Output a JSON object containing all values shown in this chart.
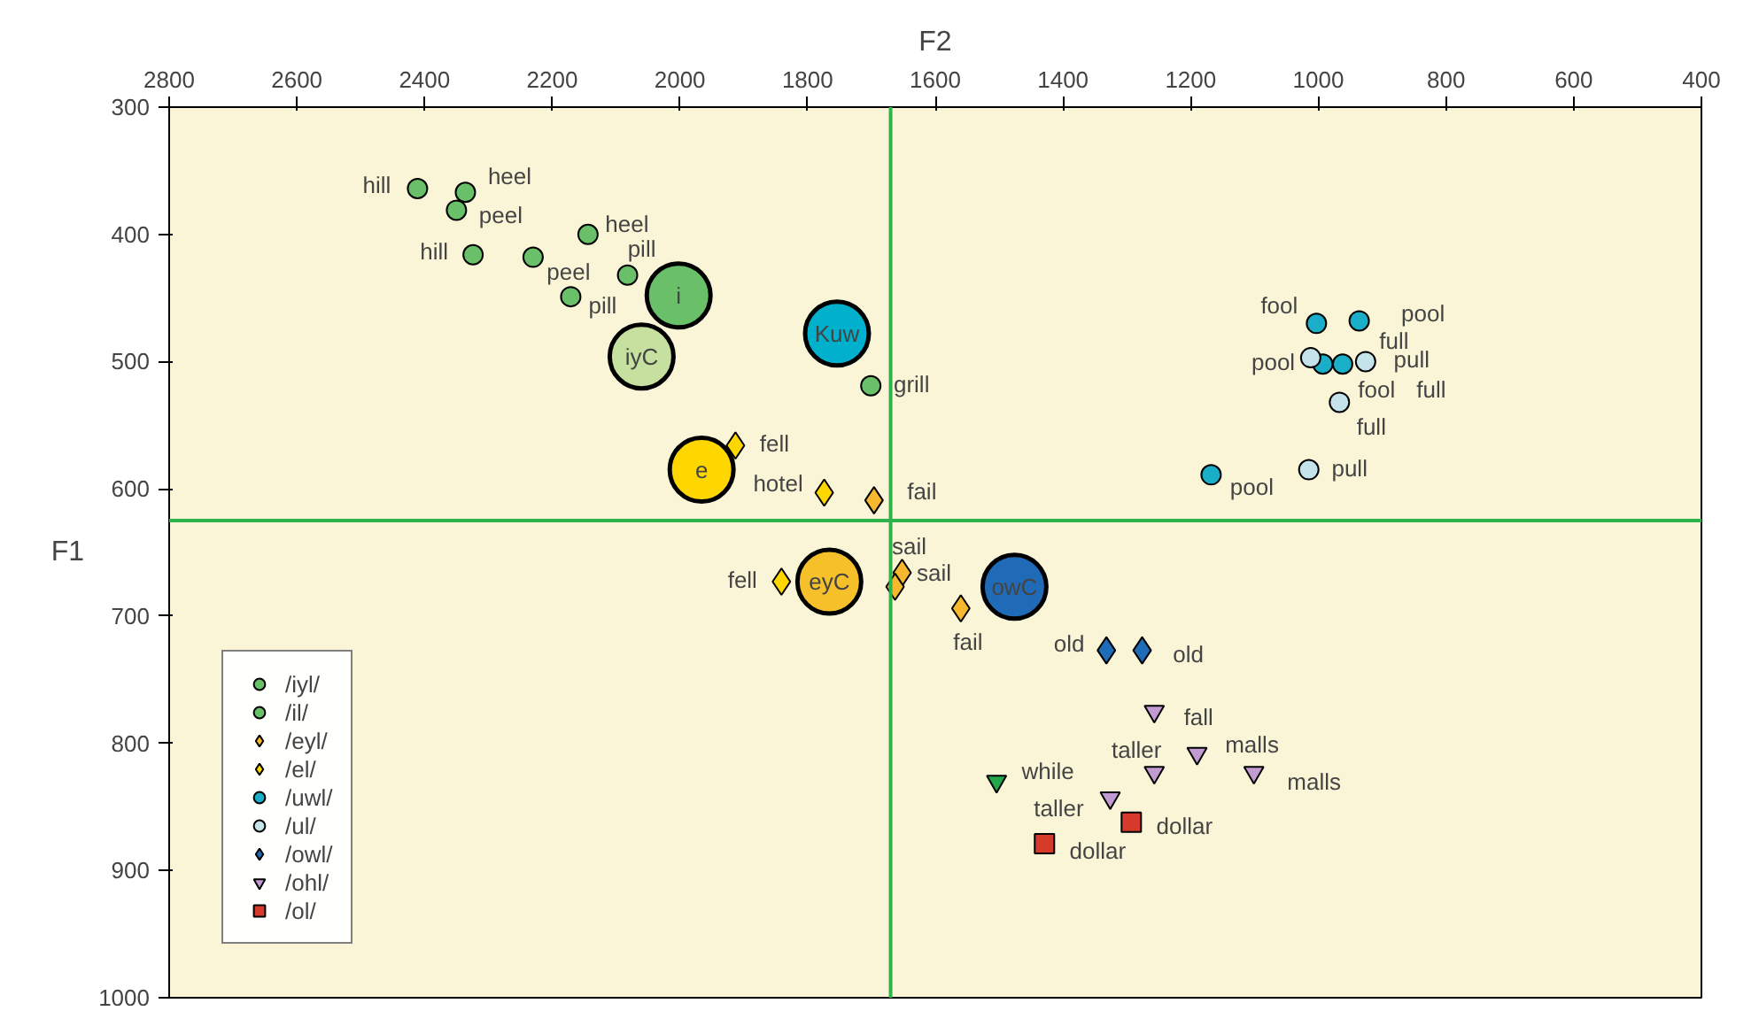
{
  "chart_data": {
    "type": "scatter",
    "xlabel": "F2",
    "ylabel": "F1",
    "xlim": [
      2800,
      400
    ],
    "ylim": [
      1000,
      300
    ],
    "xticks": [
      2800,
      2600,
      2400,
      2200,
      2000,
      1800,
      1600,
      1400,
      1200,
      1000,
      800,
      600,
      400
    ],
    "yticks": [
      300,
      400,
      500,
      600,
      700,
      800,
      900,
      1000
    ],
    "grid": false,
    "legend": "bottom left",
    "series": [
      {
        "name": "/iyl/",
        "color": "#6abf69",
        "marker": "circle",
        "x": [
          2336,
          2350,
          2144,
          2230
        ],
        "values": [
          367,
          381,
          400,
          418
        ]
      },
      {
        "name": "/il/",
        "color": "#6abf69",
        "marker": "circle",
        "x": [
          2411,
          2324,
          2082,
          2171,
          1701
        ],
        "values": [
          364,
          416,
          432,
          449,
          519
        ]
      },
      {
        "name": "/eyl/",
        "color": "#f5b82e",
        "marker": "diamond",
        "x": [
          1696,
          1652,
          1663,
          1560
        ],
        "values": [
          609,
          666,
          677,
          694
        ]
      },
      {
        "name": "/el/",
        "color": "#ffd700",
        "marker": "diamond",
        "x": [
          1913,
          1774,
          1841
        ],
        "values": [
          566,
          603,
          673
        ]
      },
      {
        "name": "/uwl/",
        "color": "#1aaec8",
        "marker": "circle",
        "x": [
          1003,
          936,
          993,
          962,
          1168
        ],
        "values": [
          470,
          468,
          502,
          502,
          589
        ]
      },
      {
        "name": "/ul/",
        "color": "#c5e3ea",
        "marker": "circle",
        "x": [
          1012,
          926,
          967,
          1015
        ],
        "values": [
          497,
          500,
          532,
          585
        ]
      },
      {
        "name": "/owl/",
        "color": "#1e6bb8",
        "marker": "diamond",
        "x": [
          1332,
          1276
        ],
        "values": [
          727,
          727
        ]
      },
      {
        "name": "/ohl/",
        "color": "#c39bd3",
        "marker": "triangle",
        "x": [
          1257,
          1257,
          1190,
          1101,
          1326
        ],
        "values": [
          775,
          823,
          808,
          823,
          843
        ]
      },
      {
        "name": "/ol/",
        "color": "#d63a2a",
        "marker": "square",
        "x": [
          1293,
          1429
        ],
        "values": [
          862,
          879
        ]
      },
      {
        "color": "#22a84a",
        "marker": "triangle",
        "x": [
          1504
        ],
        "values": [
          830
        ]
      },
      {
        "type": "bubble",
        "marker": "circle",
        "colors": [
          "#6abf69",
          "#c6e0a0",
          "#00b0cc",
          "#ffd700",
          "#f5c02a",
          "#1f6bb8"
        ],
        "x": [
          2002,
          2060,
          1754,
          1966,
          1766,
          1476
        ],
        "values": [
          448,
          496,
          478,
          585,
          673,
          677
        ],
        "sizes": [
          1,
          1,
          1,
          1,
          1,
          1
        ]
      }
    ],
    "ref_lines": [
      {
        "axis": "x",
        "value": 1670,
        "color": "#2db34a"
      },
      {
        "axis": "y",
        "value": 625,
        "color": "#2db34a"
      }
    ],
    "annotations": [
      {
        "text": "hill",
        "x": 2411,
        "y": 364
      },
      {
        "text": "heel",
        "x": 2336,
        "y": 367
      },
      {
        "text": "peel",
        "x": 2350,
        "y": 381
      },
      {
        "text": "hill",
        "x": 2324,
        "y": 416
      },
      {
        "text": "heel",
        "x": 2144,
        "y": 400
      },
      {
        "text": "peel",
        "x": 2230,
        "y": 418
      },
      {
        "text": "pill",
        "x": 2082,
        "y": 432
      },
      {
        "text": "pill",
        "x": 2171,
        "y": 449
      },
      {
        "text": "grill",
        "x": 1701,
        "y": 519
      },
      {
        "text": "fell",
        "x": 1913,
        "y": 566
      },
      {
        "text": "hotel",
        "x": 1774,
        "y": 603
      },
      {
        "text": "fail",
        "x": 1696,
        "y": 609
      },
      {
        "text": "fell",
        "x": 1841,
        "y": 673
      },
      {
        "text": "sail",
        "x": 1652,
        "y": 666
      },
      {
        "text": "sail",
        "x": 1663,
        "y": 677
      },
      {
        "text": "fail",
        "x": 1560,
        "y": 694
      },
      {
        "text": "fool",
        "x": 1003,
        "y": 470
      },
      {
        "text": "pool",
        "x": 936,
        "y": 468
      },
      {
        "text": "full",
        "x": 962,
        "y": 502
      },
      {
        "text": "pool",
        "x": 993,
        "y": 502
      },
      {
        "text": "pull",
        "x": 926,
        "y": 500
      },
      {
        "text": "fool",
        "x": 967,
        "y": 532
      },
      {
        "text": "full",
        "x": 926,
        "y": 500
      },
      {
        "text": "full",
        "x": 967,
        "y": 532
      },
      {
        "text": "pool",
        "x": 1168,
        "y": 589
      },
      {
        "text": "pull",
        "x": 1015,
        "y": 585
      },
      {
        "text": "old",
        "x": 1332,
        "y": 727
      },
      {
        "text": "old",
        "x": 1276,
        "y": 727
      },
      {
        "text": "fall",
        "x": 1257,
        "y": 775
      },
      {
        "text": "taller",
        "x": 1257,
        "y": 823
      },
      {
        "text": "malls",
        "x": 1190,
        "y": 808
      },
      {
        "text": "malls",
        "x": 1101,
        "y": 823
      },
      {
        "text": "while",
        "x": 1504,
        "y": 830
      },
      {
        "text": "taller",
        "x": 1326,
        "y": 843
      },
      {
        "text": "dollar",
        "x": 1293,
        "y": 862
      },
      {
        "text": "dollar",
        "x": 1429,
        "y": 879
      },
      {
        "text": "i",
        "x": 2002,
        "y": 448
      },
      {
        "text": "iyC",
        "x": 2060,
        "y": 496
      },
      {
        "text": "Kuw",
        "x": 1754,
        "y": 478
      },
      {
        "text": "e",
        "x": 1966,
        "y": 585
      },
      {
        "text": "eyC",
        "x": 1766,
        "y": 673
      },
      {
        "text": "owC",
        "x": 1476,
        "y": 677
      }
    ]
  }
}
